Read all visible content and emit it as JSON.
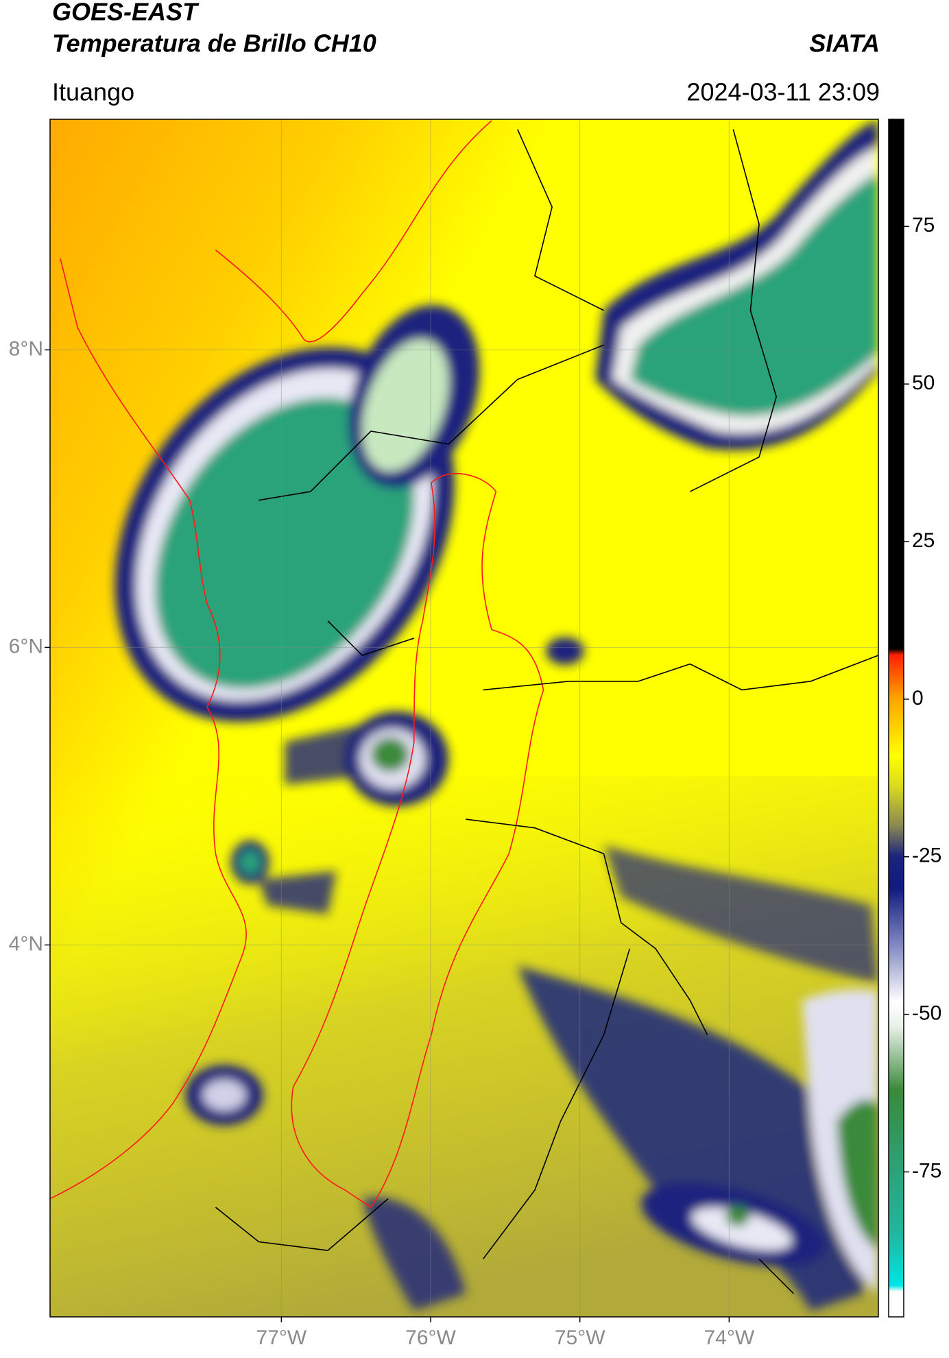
{
  "chart_data": {
    "type": "map",
    "title": "GOES-EAST",
    "subtitle": "Temperatura de Brillo CH10",
    "source": "SIATA",
    "location": "Ituango",
    "datetime": "2024-03-11 23:09",
    "xlim": [
      -78.55,
      -73.0
    ],
    "ylim": [
      1.5,
      9.55
    ],
    "xticks": [
      {
        "value": -77,
        "label": "77°W"
      },
      {
        "value": -76,
        "label": "76°W"
      },
      {
        "value": -75,
        "label": "75°W"
      },
      {
        "value": -74,
        "label": "74°W"
      }
    ],
    "yticks": [
      {
        "value": 4,
        "label": "4°N"
      },
      {
        "value": 6,
        "label": "6°N"
      },
      {
        "value": 8,
        "label": "8°N"
      }
    ],
    "grid": true,
    "colorbar": {
      "lim": [
        -98,
        92
      ],
      "ticks": [
        -75,
        -50,
        -25,
        0,
        25,
        50,
        75
      ],
      "stops": [
        [
          -98,
          "#ffffff"
        ],
        [
          -94,
          "#ffffff"
        ],
        [
          -93,
          "#00e5e5"
        ],
        [
          -85,
          "#20b8a0"
        ],
        [
          -75,
          "#2aa37a"
        ],
        [
          -62,
          "#3a8a3a"
        ],
        [
          -52,
          "#e8f0e8"
        ],
        [
          -48,
          "#ffffff"
        ],
        [
          -40,
          "#8f95c8"
        ],
        [
          -30,
          "#101a80"
        ],
        [
          -25,
          "#1a237e"
        ],
        [
          -20,
          "#8a8a50"
        ],
        [
          -14,
          "#d8d820"
        ],
        [
          -9,
          "#ffff00"
        ],
        [
          0,
          "#ffa500"
        ],
        [
          7,
          "#ff2000"
        ],
        [
          8,
          "#000000"
        ],
        [
          92,
          "#000000"
        ]
      ]
    }
  }
}
